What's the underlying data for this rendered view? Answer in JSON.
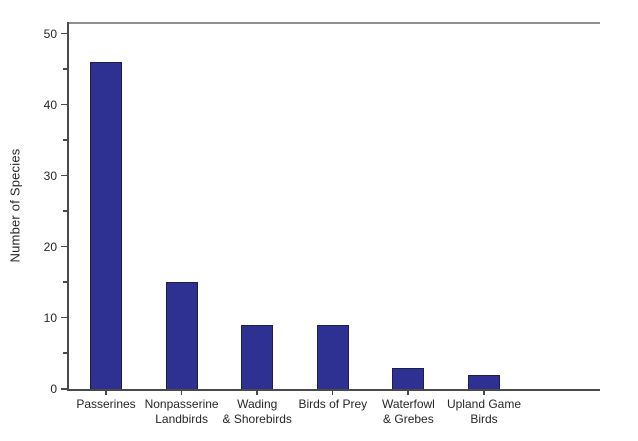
{
  "chart_data": {
    "type": "bar",
    "title": "",
    "xlabel": "",
    "ylabel": "Number of Species",
    "categories": [
      "Passerines",
      "Nonpasserine\nLandbirds",
      "Wading\n& Shorebirds",
      "Birds of Prey",
      "Waterfowl\n& Grebes",
      "Upland Game\nBirds"
    ],
    "values": [
      46,
      15,
      9,
      9,
      3,
      2
    ],
    "ylim": [
      0,
      51.5
    ],
    "yticks_major": [
      0,
      10,
      20,
      30,
      40,
      50
    ],
    "yticks_minor": [
      5,
      15,
      25,
      35,
      45
    ],
    "grid": false,
    "legend": false,
    "colors": {
      "bar_fill": "#2e3192",
      "bar_border": "#1d1d4f",
      "axis": "#4a4a4a",
      "top_border": "#8f8f8f",
      "text": "#262626",
      "background": "#ffffff"
    }
  }
}
